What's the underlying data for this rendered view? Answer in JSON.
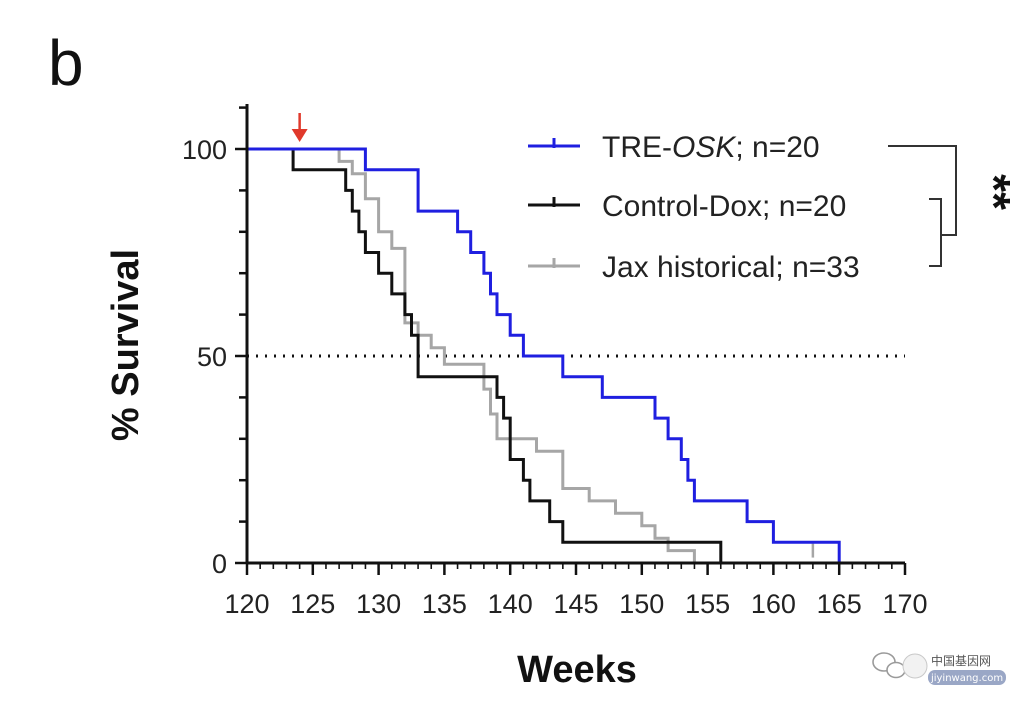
{
  "panel_label": "b",
  "colors": {
    "tre_osk": "#1f1fe0",
    "control_dox": "#111111",
    "jax_historical": "#a6a6a6",
    "treatment_arrow": "#e0392b",
    "axis": "#111111"
  },
  "watermark": {
    "title": "中国基因网",
    "url": "jiyinwang.com",
    "icon": "wechat-icon"
  },
  "chart_data": {
    "type": "line",
    "step": true,
    "xlabel": "Weeks",
    "ylabel": "% Survival",
    "xlim": [
      120,
      170
    ],
    "ylim": [
      0,
      100
    ],
    "x_ticks": [
      120,
      125,
      130,
      135,
      140,
      145,
      150,
      155,
      160,
      165,
      170
    ],
    "y_ticks": [
      0,
      50,
      100
    ],
    "x_tick_labels": [
      "120",
      "125",
      "130",
      "135",
      "140",
      "145",
      "150",
      "155",
      "160",
      "165",
      "170"
    ],
    "y_tick_labels": [
      "0",
      "50",
      "100"
    ],
    "reference_line": {
      "y": 50,
      "style": "dotted"
    },
    "treatment_marker": {
      "x": 124
    },
    "legend_position": "top-right",
    "significance": "**",
    "series": [
      {
        "name": "TRE-OSK; n=20",
        "name_parts": [
          "TRE-",
          "OSK",
          "; n=20"
        ],
        "color": "#1f1fe0",
        "points": [
          [
            120,
            100
          ],
          [
            129,
            100
          ],
          [
            129,
            95
          ],
          [
            133,
            95
          ],
          [
            133,
            85
          ],
          [
            136,
            85
          ],
          [
            136,
            80
          ],
          [
            137,
            80
          ],
          [
            137,
            75
          ],
          [
            138,
            75
          ],
          [
            138,
            70
          ],
          [
            138.5,
            70
          ],
          [
            138.5,
            65
          ],
          [
            139,
            65
          ],
          [
            139,
            60
          ],
          [
            140,
            60
          ],
          [
            140,
            55
          ],
          [
            141,
            55
          ],
          [
            141,
            50
          ],
          [
            144,
            50
          ],
          [
            144,
            45
          ],
          [
            147,
            45
          ],
          [
            147,
            40
          ],
          [
            151,
            40
          ],
          [
            151,
            35
          ],
          [
            152,
            35
          ],
          [
            152,
            30
          ],
          [
            153,
            30
          ],
          [
            153,
            25
          ],
          [
            153.5,
            25
          ],
          [
            153.5,
            20
          ],
          [
            154,
            20
          ],
          [
            154,
            15
          ],
          [
            158,
            15
          ],
          [
            158,
            10
          ],
          [
            160,
            10
          ],
          [
            160,
            5
          ],
          [
            165,
            5
          ],
          [
            165,
            0
          ]
        ],
        "censored": []
      },
      {
        "name": "Control-Dox; n=20",
        "name_parts": [
          "Control-Dox; n=20"
        ],
        "color": "#111111",
        "points": [
          [
            120,
            100
          ],
          [
            123.5,
            100
          ],
          [
            123.5,
            95
          ],
          [
            127.5,
            95
          ],
          [
            127.5,
            90
          ],
          [
            128,
            90
          ],
          [
            128,
            85
          ],
          [
            128.5,
            85
          ],
          [
            128.5,
            80
          ],
          [
            129,
            80
          ],
          [
            129,
            75
          ],
          [
            130,
            75
          ],
          [
            130,
            70
          ],
          [
            131,
            70
          ],
          [
            131,
            65
          ],
          [
            132,
            65
          ],
          [
            132,
            60
          ],
          [
            132.5,
            60
          ],
          [
            132.5,
            55
          ],
          [
            133,
            55
          ],
          [
            133,
            45
          ],
          [
            139,
            45
          ],
          [
            139,
            40
          ],
          [
            139.5,
            40
          ],
          [
            139.5,
            35
          ],
          [
            140,
            35
          ],
          [
            140,
            25
          ],
          [
            141,
            25
          ],
          [
            141,
            20
          ],
          [
            141.5,
            20
          ],
          [
            141.5,
            15
          ],
          [
            143,
            15
          ],
          [
            143,
            10
          ],
          [
            144,
            10
          ],
          [
            144,
            5
          ],
          [
            156,
            5
          ],
          [
            156,
            0
          ]
        ],
        "censored": []
      },
      {
        "name": "Jax historical; n=33",
        "name_parts": [
          "Jax historical; n=33"
        ],
        "color": "#a6a6a6",
        "points": [
          [
            120,
            100
          ],
          [
            127,
            100
          ],
          [
            127,
            97
          ],
          [
            128,
            97
          ],
          [
            128,
            94
          ],
          [
            129,
            94
          ],
          [
            129,
            88
          ],
          [
            130,
            88
          ],
          [
            130,
            80
          ],
          [
            131,
            80
          ],
          [
            131,
            76
          ],
          [
            132,
            76
          ],
          [
            132,
            58
          ],
          [
            133,
            58
          ],
          [
            133,
            55
          ],
          [
            134,
            55
          ],
          [
            134,
            52
          ],
          [
            135,
            52
          ],
          [
            135,
            48
          ],
          [
            138,
            48
          ],
          [
            138,
            42
          ],
          [
            138.5,
            42
          ],
          [
            138.5,
            36
          ],
          [
            139,
            36
          ],
          [
            139,
            30
          ],
          [
            142,
            30
          ],
          [
            142,
            27
          ],
          [
            144,
            27
          ],
          [
            144,
            18
          ],
          [
            146,
            18
          ],
          [
            146,
            15
          ],
          [
            148,
            15
          ],
          [
            148,
            12
          ],
          [
            150,
            12
          ],
          [
            150,
            9
          ],
          [
            151,
            9
          ],
          [
            151,
            6
          ],
          [
            152,
            6
          ],
          [
            152,
            3
          ],
          [
            154,
            3
          ],
          [
            154,
            0
          ]
        ],
        "censored": [
          [
            156,
            3
          ],
          [
            163,
            3
          ]
        ]
      }
    ]
  }
}
